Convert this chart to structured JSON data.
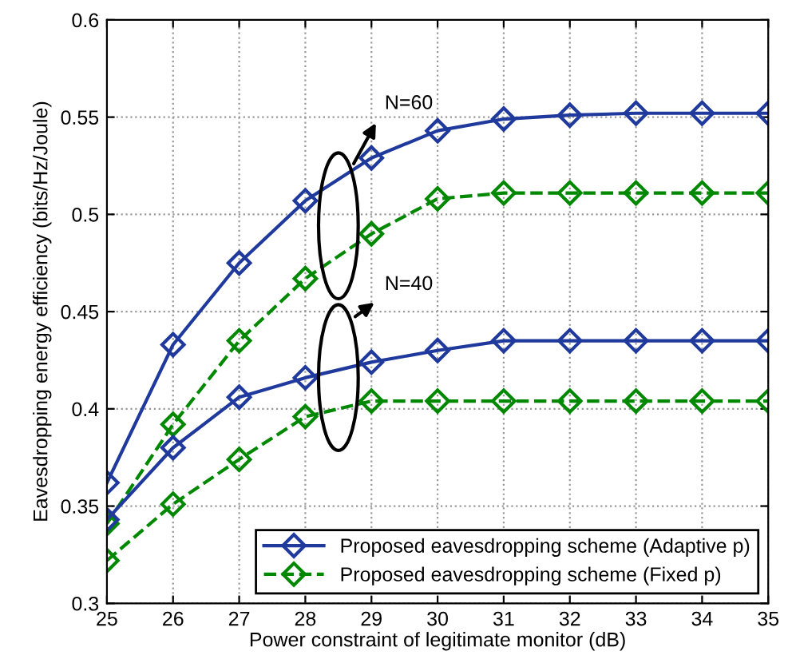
{
  "chart_data": {
    "type": "line",
    "xlabel": "Power constraint of legitimate monitor (dB)",
    "ylabel": "Eavesdropping energy efficiency (bits/Hz/Joule)",
    "x": [
      25,
      26,
      27,
      28,
      29,
      30,
      31,
      32,
      33,
      34,
      35
    ],
    "series": [
      {
        "name": "Proposed eavesdropping scheme (Adaptive p)",
        "color": "#1f3a9c",
        "line_style": "solid",
        "values": [
          0.362,
          0.433,
          0.475,
          0.507,
          0.529,
          0.543,
          0.549,
          0.551,
          0.552,
          0.552,
          0.552
        ]
      },
      {
        "name": "Proposed eavesdropping scheme (Fixed p)",
        "color": "#008800",
        "line_style": "dashed",
        "values": [
          0.341,
          0.392,
          0.435,
          0.467,
          0.49,
          0.508,
          0.511,
          0.511,
          0.511,
          0.511,
          0.511
        ]
      },
      {
        "color": "#1f3a9c",
        "line_style": "solid",
        "values": [
          0.343,
          0.38,
          0.406,
          0.416,
          0.424,
          0.43,
          0.435,
          0.435,
          0.435,
          0.435,
          0.435
        ]
      },
      {
        "color": "#008800",
        "line_style": "dashed",
        "values": [
          0.322,
          0.351,
          0.374,
          0.396,
          0.404,
          0.404,
          0.404,
          0.404,
          0.404,
          0.404,
          0.404
        ]
      }
    ],
    "marker": "diamond",
    "xlim": [
      25,
      35
    ],
    "xticks": [
      25,
      26,
      27,
      28,
      29,
      30,
      31,
      32,
      33,
      34,
      35
    ],
    "ylim": [
      0.3,
      0.6
    ],
    "yticks": [
      0.3,
      0.35,
      0.4,
      0.45,
      0.5,
      0.55,
      0.6
    ],
    "grid": true,
    "legend": "bottom right",
    "annotations": [
      "N=60",
      "N=40"
    ]
  }
}
